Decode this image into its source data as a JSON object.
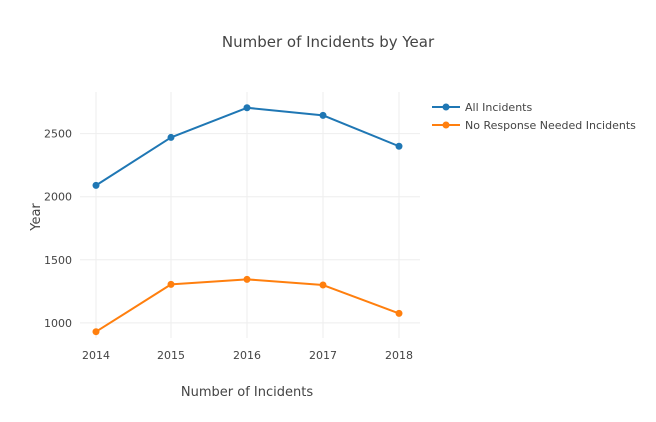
{
  "chart_data": {
    "type": "line",
    "title": "Number of Incidents by Year",
    "xlabel": "Number of Incidents",
    "ylabel": "Year",
    "categories": [
      "2014",
      "2015",
      "2016",
      "2017",
      "2018"
    ],
    "ylim": [
      880,
      2830
    ],
    "yticks": [
      1000,
      1500,
      2000,
      2500
    ],
    "grid": true,
    "legend_position": "top-right",
    "series": [
      {
        "name": "All Incidents",
        "color": "#1f77b4",
        "values": [
          2090,
          2470,
          2705,
          2645,
          2400
        ]
      },
      {
        "name": "No Response Needed Incidents",
        "color": "#ff7f0e",
        "values": [
          930,
          1305,
          1345,
          1300,
          1075
        ]
      }
    ]
  }
}
